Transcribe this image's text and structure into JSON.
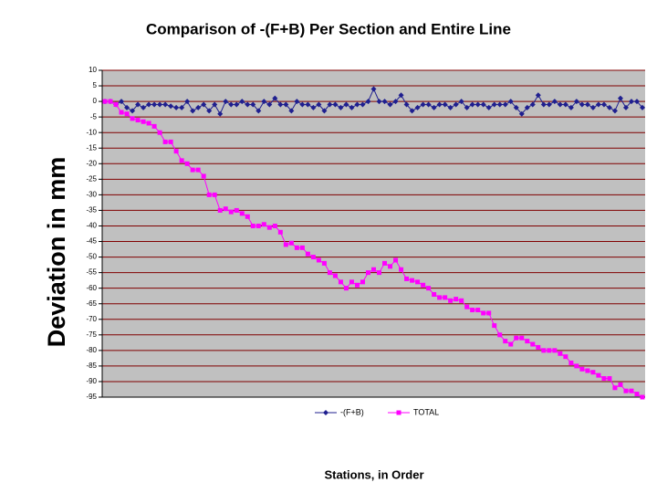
{
  "chart_data": {
    "type": "line",
    "title": "Comparison of -(F+B) Per Section and Entire Line",
    "x_label": "Stations, in Order",
    "y_label": "Deviation in mm",
    "categories": [
      null,
      null,
      null,
      null,
      null,
      null,
      null,
      null,
      null,
      null,
      null,
      null,
      null,
      null,
      null,
      null,
      null,
      null,
      null,
      null,
      null,
      null,
      null,
      null,
      null,
      null,
      null,
      null,
      null,
      null,
      null,
      null,
      null,
      null,
      null,
      null,
      null,
      null,
      null,
      null,
      null,
      null,
      null,
      null,
      null,
      null,
      null,
      null,
      null,
      null,
      null,
      null,
      null,
      null,
      null,
      null,
      null,
      null,
      null,
      null,
      null,
      null,
      null,
      null,
      null,
      null,
      null,
      null,
      null,
      null,
      null,
      null,
      null,
      null,
      null,
      null,
      null,
      null,
      null,
      null,
      null,
      null,
      null,
      null,
      null,
      null,
      null,
      null,
      null,
      null,
      null,
      null,
      null,
      null,
      null,
      null,
      null,
      null,
      null
    ],
    "series": [
      {
        "name": "-(F+B)",
        "color": "#1f1f8f",
        "marker": "diamond",
        "values": [
          0,
          0,
          -1,
          0,
          -2,
          -3,
          -1,
          -2,
          -1,
          -1,
          -1,
          -1,
          -1.5,
          -2,
          -2,
          0,
          -3,
          -2,
          -1,
          -3,
          -1,
          -4,
          0,
          -1,
          -1,
          0,
          -1,
          -1,
          -3,
          0,
          -1,
          1,
          -1,
          -1,
          -3,
          0,
          -1,
          -1,
          -2,
          -1,
          -3,
          -1,
          -1,
          -2,
          -1,
          -2,
          -1,
          -1,
          0,
          4,
          0,
          0,
          -1,
          0,
          2,
          -1,
          -3,
          -2,
          -1,
          -1,
          -2,
          -1,
          -1,
          -2,
          -1,
          0,
          -2,
          -1,
          -1,
          -1,
          -2,
          -1,
          -1,
          -1,
          0,
          -2,
          -4,
          -2,
          -1,
          2,
          -1,
          -1,
          0,
          -1,
          -1,
          -2,
          0,
          -1,
          -1,
          -2,
          -1,
          -1,
          -2,
          -3,
          1,
          -2,
          0,
          0,
          -2
        ]
      },
      {
        "name": "TOTAL",
        "color": "#ff00ff",
        "marker": "square",
        "values": [
          0,
          0,
          -1,
          -3.5,
          -4,
          -5.5,
          -6,
          -6.5,
          -7,
          -8,
          -10,
          -13,
          -13,
          -16,
          -19,
          -20,
          -22,
          -22,
          -24,
          -30,
          -30,
          -35,
          -34.5,
          -35.5,
          -35,
          -36,
          -37,
          -40,
          -40,
          -39.5,
          -40.5,
          -40,
          -42,
          -46,
          -45.5,
          -47,
          -47,
          -49,
          -50,
          -51,
          -52,
          -55,
          -56,
          -58,
          -60,
          -58,
          -59,
          -58,
          -55,
          -54,
          -55,
          -52,
          -53,
          -51,
          -54,
          -57,
          -57.5,
          -58,
          -59,
          -60,
          -62,
          -63,
          -63,
          -64,
          -63.5,
          -64,
          -66,
          -67,
          -67,
          -68,
          -68,
          -72,
          -75,
          -77,
          -78,
          -76,
          -76,
          -77,
          -78,
          -79,
          -80,
          -80,
          -80,
          -81,
          -82,
          -84,
          -85,
          -86,
          -86.5,
          -87,
          -88,
          -89,
          -89,
          -92,
          -91,
          -93,
          -93,
          -94,
          -95
        ]
      }
    ],
    "ylim": [
      -95,
      10
    ],
    "yticks": [
      10,
      5,
      0,
      -5,
      -10,
      -15,
      -20,
      -25,
      -30,
      -35,
      -40,
      -45,
      -50,
      -55,
      -60,
      -65,
      -70,
      -75,
      -80,
      -85,
      -90,
      -95
    ],
    "grid": true,
    "grid_color": "#800000",
    "plot_background": "#c0c0c0",
    "legend": "bottom"
  }
}
